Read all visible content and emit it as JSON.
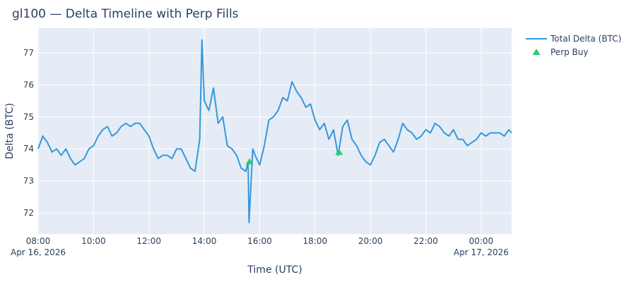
{
  "chart_data": {
    "type": "line",
    "title": "gl100 — Delta Timeline with Perp Fills",
    "x_label": "Time (UTC)",
    "y_label": "Delta (BTC)",
    "xlim": [
      "2026-04-16 08:00",
      "2026-04-17 01:06"
    ],
    "ylim": [
      71.34,
      77.77
    ],
    "xticks": [
      {
        "value": "2026-04-16 08:00",
        "label": "08:00\nApr 16, 2026"
      },
      {
        "value": "2026-04-16 10:00",
        "label": "10:00"
      },
      {
        "value": "2026-04-16 12:00",
        "label": "12:00"
      },
      {
        "value": "2026-04-16 14:00",
        "label": "14:00"
      },
      {
        "value": "2026-04-16 16:00",
        "label": "16:00"
      },
      {
        "value": "2026-04-16 18:00",
        "label": "18:00"
      },
      {
        "value": "2026-04-16 20:00",
        "label": "20:00"
      },
      {
        "value": "2026-04-16 22:00",
        "label": "22:00"
      },
      {
        "value": "2026-04-17 00:00",
        "label": "00:00\nApr 17, 2026"
      }
    ],
    "yticks": [
      72,
      73,
      74,
      75,
      76,
      77
    ],
    "grid": true,
    "legend": "right",
    "series": [
      {
        "name": "Total Delta (BTC)",
        "color": "#3498db",
        "type": "line",
        "x": [
          "2026-04-16 08:00",
          "2026-04-16 08:10",
          "2026-04-16 08:20",
          "2026-04-16 08:30",
          "2026-04-16 08:40",
          "2026-04-16 08:50",
          "2026-04-16 09:00",
          "2026-04-16 09:10",
          "2026-04-16 09:20",
          "2026-04-16 09:30",
          "2026-04-16 09:40",
          "2026-04-16 09:50",
          "2026-04-16 10:00",
          "2026-04-16 10:10",
          "2026-04-16 10:20",
          "2026-04-16 10:30",
          "2026-04-16 10:40",
          "2026-04-16 10:50",
          "2026-04-16 11:00",
          "2026-04-16 11:10",
          "2026-04-16 11:20",
          "2026-04-16 11:30",
          "2026-04-16 11:40",
          "2026-04-16 11:50",
          "2026-04-16 12:00",
          "2026-04-16 12:10",
          "2026-04-16 12:20",
          "2026-04-16 12:30",
          "2026-04-16 12:40",
          "2026-04-16 12:50",
          "2026-04-16 13:00",
          "2026-04-16 13:10",
          "2026-04-16 13:20",
          "2026-04-16 13:30",
          "2026-04-16 13:40",
          "2026-04-16 13:50",
          "2026-04-16 13:55",
          "2026-04-16 14:00",
          "2026-04-16 14:10",
          "2026-04-16 14:20",
          "2026-04-16 14:30",
          "2026-04-16 14:40",
          "2026-04-16 14:50",
          "2026-04-16 15:00",
          "2026-04-16 15:10",
          "2026-04-16 15:20",
          "2026-04-16 15:30",
          "2026-04-16 15:35",
          "2026-04-16 15:37",
          "2026-04-16 15:45",
          "2026-04-16 15:50",
          "2026-04-16 16:00",
          "2026-04-16 16:10",
          "2026-04-16 16:20",
          "2026-04-16 16:30",
          "2026-04-16 16:40",
          "2026-04-16 16:50",
          "2026-04-16 17:00",
          "2026-04-16 17:10",
          "2026-04-16 17:20",
          "2026-04-16 17:30",
          "2026-04-16 17:40",
          "2026-04-16 17:50",
          "2026-04-16 18:00",
          "2026-04-16 18:10",
          "2026-04-16 18:20",
          "2026-04-16 18:30",
          "2026-04-16 18:40",
          "2026-04-16 18:50",
          "2026-04-16 19:00",
          "2026-04-16 19:10",
          "2026-04-16 19:20",
          "2026-04-16 19:30",
          "2026-04-16 19:40",
          "2026-04-16 19:50",
          "2026-04-16 20:00",
          "2026-04-16 20:10",
          "2026-04-16 20:20",
          "2026-04-16 20:30",
          "2026-04-16 20:40",
          "2026-04-16 20:50",
          "2026-04-16 21:00",
          "2026-04-16 21:10",
          "2026-04-16 21:20",
          "2026-04-16 21:30",
          "2026-04-16 21:40",
          "2026-04-16 21:50",
          "2026-04-16 22:00",
          "2026-04-16 22:10",
          "2026-04-16 22:20",
          "2026-04-16 22:30",
          "2026-04-16 22:40",
          "2026-04-16 22:50",
          "2026-04-16 23:00",
          "2026-04-16 23:10",
          "2026-04-16 23:20",
          "2026-04-16 23:30",
          "2026-04-16 23:40",
          "2026-04-16 23:50",
          "2026-04-17 00:00",
          "2026-04-17 00:10",
          "2026-04-17 00:20",
          "2026-04-17 00:30",
          "2026-04-17 00:40",
          "2026-04-17 00:50",
          "2026-04-17 01:00",
          "2026-04-17 01:06"
        ],
        "values": [
          74.0,
          74.4,
          74.2,
          73.9,
          74.0,
          73.8,
          74.0,
          73.7,
          73.5,
          73.6,
          73.7,
          74.0,
          74.1,
          74.4,
          74.6,
          74.7,
          74.4,
          74.5,
          74.7,
          74.8,
          74.7,
          74.8,
          74.8,
          74.6,
          74.4,
          74.0,
          73.7,
          73.8,
          73.8,
          73.7,
          74.0,
          74.0,
          73.7,
          73.4,
          73.3,
          74.3,
          77.4,
          75.5,
          75.2,
          75.9,
          74.8,
          75.0,
          74.1,
          74.0,
          73.8,
          73.4,
          73.3,
          73.6,
          71.7,
          74.0,
          73.8,
          73.5,
          74.1,
          74.9,
          75.0,
          75.2,
          75.6,
          75.5,
          76.1,
          75.8,
          75.6,
          75.3,
          75.4,
          74.9,
          74.6,
          74.8,
          74.3,
          74.6,
          73.8,
          74.7,
          74.9,
          74.3,
          74.1,
          73.8,
          73.6,
          73.5,
          73.8,
          74.2,
          74.3,
          74.1,
          73.9,
          74.3,
          74.8,
          74.6,
          74.5,
          74.3,
          74.4,
          74.6,
          74.5,
          74.8,
          74.7,
          74.5,
          74.4,
          74.6,
          74.3,
          74.3,
          74.1,
          74.2,
          74.3,
          74.5,
          74.4,
          74.5,
          74.5,
          74.5,
          74.4,
          74.6,
          74.5
        ]
      },
      {
        "name": "Perp Buy",
        "color": "#2ecc71",
        "type": "markers",
        "x": [
          "2026-04-16 15:38",
          "2026-04-16 18:52"
        ],
        "values": [
          73.6,
          73.9
        ]
      }
    ]
  }
}
